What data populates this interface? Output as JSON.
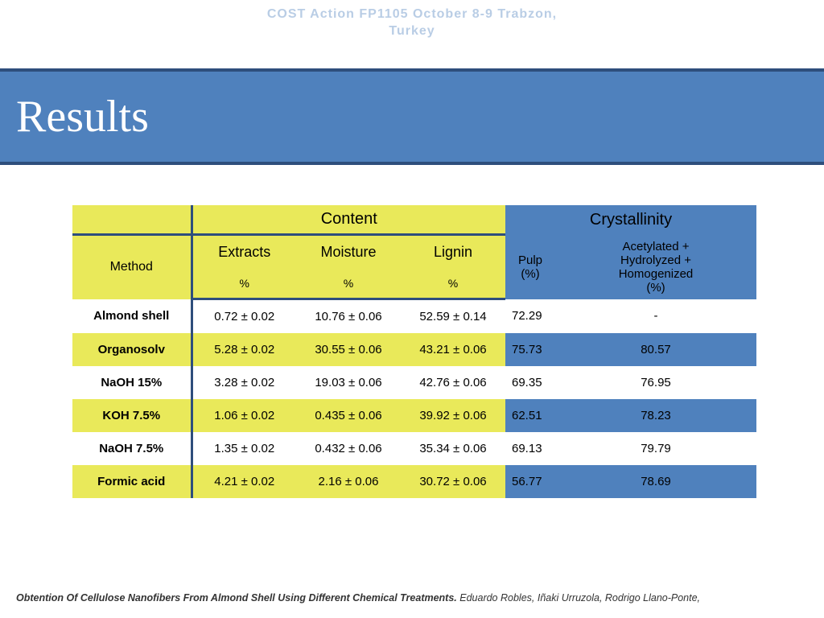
{
  "header_line1": "COST Action FP1105 October 8-9 Trabzon,",
  "header_line2": "Turkey",
  "title": "Results",
  "table": {
    "group_content": "Content",
    "group_crystallinity": "Crystallinity",
    "method_label": "Method",
    "col_extracts": "Extracts",
    "col_moisture": "Moisture",
    "col_lignin": "Lignin",
    "col_pulp_line1": "Pulp",
    "col_pulp_line2": "(%)",
    "col_acet_line1": "Acetylated +",
    "col_acet_line2": "Hydrolyzed +",
    "col_acet_line3": "Homogenized",
    "col_acet_line4": "(%)",
    "unit_pct": "%",
    "rows": [
      {
        "method": "Almond shell",
        "extracts": "0.72 ± 0.02",
        "moisture": "10.76 ± 0.06",
        "lignin": "52.59 ± 0.14",
        "pulp": "72.29",
        "acet": "-",
        "pulp_bg": "r-white",
        "acet_bg": "r-white"
      },
      {
        "method": "Organosolv",
        "extracts": "5.28 ± 0.02",
        "moisture": "30.55 ± 0.06",
        "lignin": "43.21 ± 0.06",
        "pulp": "75.73",
        "acet": "80.57",
        "pulp_bg": "r-blue",
        "acet_bg": "r-blue"
      },
      {
        "method": "NaOH 15%",
        "extracts": "3.28 ± 0.02",
        "moisture": "19.03 ± 0.06",
        "lignin": "42.76 ± 0.06",
        "pulp": "69.35",
        "acet": "76.95",
        "pulp_bg": "r-white",
        "acet_bg": "r-white"
      },
      {
        "method": "KOH 7.5%",
        "extracts": "1.06 ± 0.02",
        "moisture": "0.435 ± 0.06",
        "lignin": "39.92 ± 0.06",
        "pulp": "62.51",
        "acet": "78.23",
        "pulp_bg": "r-blue",
        "acet_bg": "r-blue"
      },
      {
        "method": "NaOH 7.5%",
        "extracts": "1.35 ± 0.02",
        "moisture": "0.432 ± 0.06",
        "lignin": "35.34 ± 0.06",
        "pulp": "69.13",
        "acet": "79.79",
        "pulp_bg": "r-white",
        "acet_bg": "r-white"
      },
      {
        "method": "Formic acid",
        "extracts": "4.21 ± 0.02",
        "moisture": "2.16 ± 0.06",
        "lignin": "30.72 ± 0.06",
        "pulp": "56.77",
        "acet": "78.69",
        "pulp_bg": "r-blue",
        "acet_bg": "r-blue"
      }
    ]
  },
  "footer_title": "Obtention Of Cellulose Nanofibers From Almond Shell Using Different Chemical Treatments.",
  "footer_authors": " Eduardo Robles, Iñaki Urruzola, Rodrigo Llano-Ponte,",
  "colors": {
    "yellow": "#e9e95a",
    "blue": "#4f81bd",
    "darkblue": "#2e4e7c",
    "header_text": "#b9cde5"
  }
}
